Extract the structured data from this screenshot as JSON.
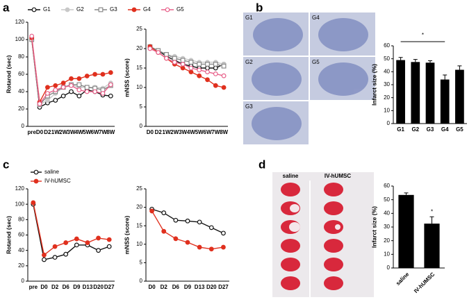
{
  "panels": [
    "a",
    "b",
    "c",
    "d"
  ],
  "images": {
    "b": [
      "G1",
      "G4",
      "G2",
      "G5",
      "G3"
    ],
    "d": [
      "saline",
      "IV-hUMSC"
    ]
  },
  "chart_data": [
    {
      "type": "line",
      "ylabel": "Rotarod (sec)",
      "legend": "top",
      "categories": [
        "pre",
        "D0",
        "D2",
        "1W",
        "2W",
        "3W",
        "4W",
        "5W",
        "6W",
        "7W",
        "8W"
      ],
      "ylim": [
        0,
        120
      ],
      "yticks": [
        0,
        20,
        40,
        60,
        80,
        100,
        120
      ],
      "series": [
        {
          "name": "G1",
          "color": "#111111",
          "marker": "circle",
          "filled": false,
          "values": [
            100,
            22,
            27,
            30,
            35,
            40,
            35,
            42,
            40,
            36,
            35
          ]
        },
        {
          "name": "G2",
          "color": "#c8c8c8",
          "marker": "circle",
          "filled": true,
          "values": [
            100,
            25,
            30,
            38,
            45,
            48,
            45,
            45,
            45,
            44,
            50
          ]
        },
        {
          "name": "G3",
          "color": "#888888",
          "marker": "square",
          "filled": false,
          "values": [
            100,
            25,
            35,
            40,
            45,
            48,
            48,
            45,
            44,
            42,
            47
          ]
        },
        {
          "name": "G4",
          "color": "#e0301e",
          "marker": "circle",
          "filled": true,
          "values": [
            102,
            28,
            45,
            47,
            50,
            55,
            55,
            58,
            60,
            60,
            62
          ]
        },
        {
          "name": "G5",
          "color": "#e8608a",
          "marker": "circle",
          "filled": false,
          "values": [
            104,
            26,
            38,
            42,
            45,
            47,
            42,
            40,
            40,
            38,
            48
          ]
        }
      ]
    },
    {
      "type": "line",
      "ylabel": "mNSS (score)",
      "categories": [
        "D0",
        "D2",
        "1W",
        "2W",
        "3W",
        "4W",
        "5W",
        "6W",
        "7W",
        "8W"
      ],
      "ylim": [
        0,
        25
      ],
      "yticks": [
        0,
        5,
        10,
        15,
        20,
        25
      ],
      "series": [
        {
          "name": "G1",
          "color": "#111111",
          "marker": "circle",
          "filled": false,
          "values": [
            20.5,
            19.5,
            18,
            17,
            16,
            15.5,
            15,
            15,
            15,
            16
          ]
        },
        {
          "name": "G2",
          "color": "#c8c8c8",
          "marker": "circle",
          "filled": true,
          "values": [
            20.5,
            19.5,
            18.5,
            18,
            17.5,
            17,
            16.5,
            16.5,
            16.5,
            16
          ]
        },
        {
          "name": "G3",
          "color": "#888888",
          "marker": "square",
          "filled": false,
          "values": [
            20.5,
            19.5,
            18.5,
            17.5,
            17,
            16.5,
            16,
            16,
            16,
            15.5
          ]
        },
        {
          "name": "G4",
          "color": "#e0301e",
          "marker": "circle",
          "filled": true,
          "values": [
            20.5,
            19,
            17.5,
            16,
            15,
            14,
            13,
            12,
            10.5,
            10
          ]
        },
        {
          "name": "G5",
          "color": "#e8608a",
          "marker": "circle",
          "filled": false,
          "values": [
            20,
            19,
            17.5,
            16.5,
            16,
            15,
            14.5,
            14,
            13.5,
            13
          ]
        }
      ]
    },
    {
      "type": "bar",
      "ylabel": "Infarct size (%)",
      "annotation": "*",
      "color": "#000000",
      "categories": [
        "G1",
        "G2",
        "G3",
        "G4",
        "G5"
      ],
      "values": [
        49,
        47.5,
        47,
        34,
        41.5
      ],
      "errors": [
        2,
        2,
        1.5,
        3.5,
        3
      ],
      "ylim": [
        0,
        60
      ],
      "yticks": [
        0,
        10,
        20,
        30,
        40,
        50,
        60
      ]
    },
    {
      "type": "line",
      "ylabel": "Rotarod (sec)",
      "legend": "upper left",
      "categories": [
        "pre",
        "D0",
        "D2",
        "D6",
        "D9",
        "D13",
        "D20",
        "D27"
      ],
      "ylim": [
        0,
        120
      ],
      "yticks": [
        0,
        20,
        40,
        60,
        80,
        100,
        120
      ],
      "series": [
        {
          "name": "saline",
          "color": "#111111",
          "marker": "circle",
          "filled": false,
          "values": [
            100,
            28,
            31,
            35,
            47,
            47,
            40,
            45
          ]
        },
        {
          "name": "IV-hUMSC",
          "color": "#e0301e",
          "marker": "circle",
          "filled": true,
          "values": [
            102,
            34,
            45,
            50,
            55,
            50,
            56,
            54
          ]
        }
      ]
    },
    {
      "type": "line",
      "ylabel": "mNSS (score)",
      "categories": [
        "D0",
        "D2",
        "D6",
        "D9",
        "D13",
        "D20",
        "D27"
      ],
      "ylim": [
        0,
        25
      ],
      "yticks": [
        0,
        5,
        10,
        15,
        20,
        25
      ],
      "series": [
        {
          "name": "saline",
          "color": "#111111",
          "marker": "circle",
          "filled": false,
          "values": [
            19.5,
            18.5,
            16.5,
            16.3,
            16,
            14.5,
            13
          ]
        },
        {
          "name": "IV-hUMSC",
          "color": "#e0301e",
          "marker": "circle",
          "filled": true,
          "values": [
            19,
            13.5,
            11.5,
            10.5,
            9.2,
            8.7,
            9.2
          ]
        }
      ]
    },
    {
      "type": "bar",
      "ylabel": "Infarct size (%)",
      "annotation": "*",
      "color": "#000000",
      "categories": [
        "saline",
        "IV-hUMSC"
      ],
      "values": [
        53.5,
        32.5
      ],
      "errors": [
        1.5,
        5
      ],
      "ylim": [
        0,
        60
      ],
      "yticks": [
        0,
        10,
        20,
        30,
        40,
        50,
        60
      ]
    }
  ]
}
